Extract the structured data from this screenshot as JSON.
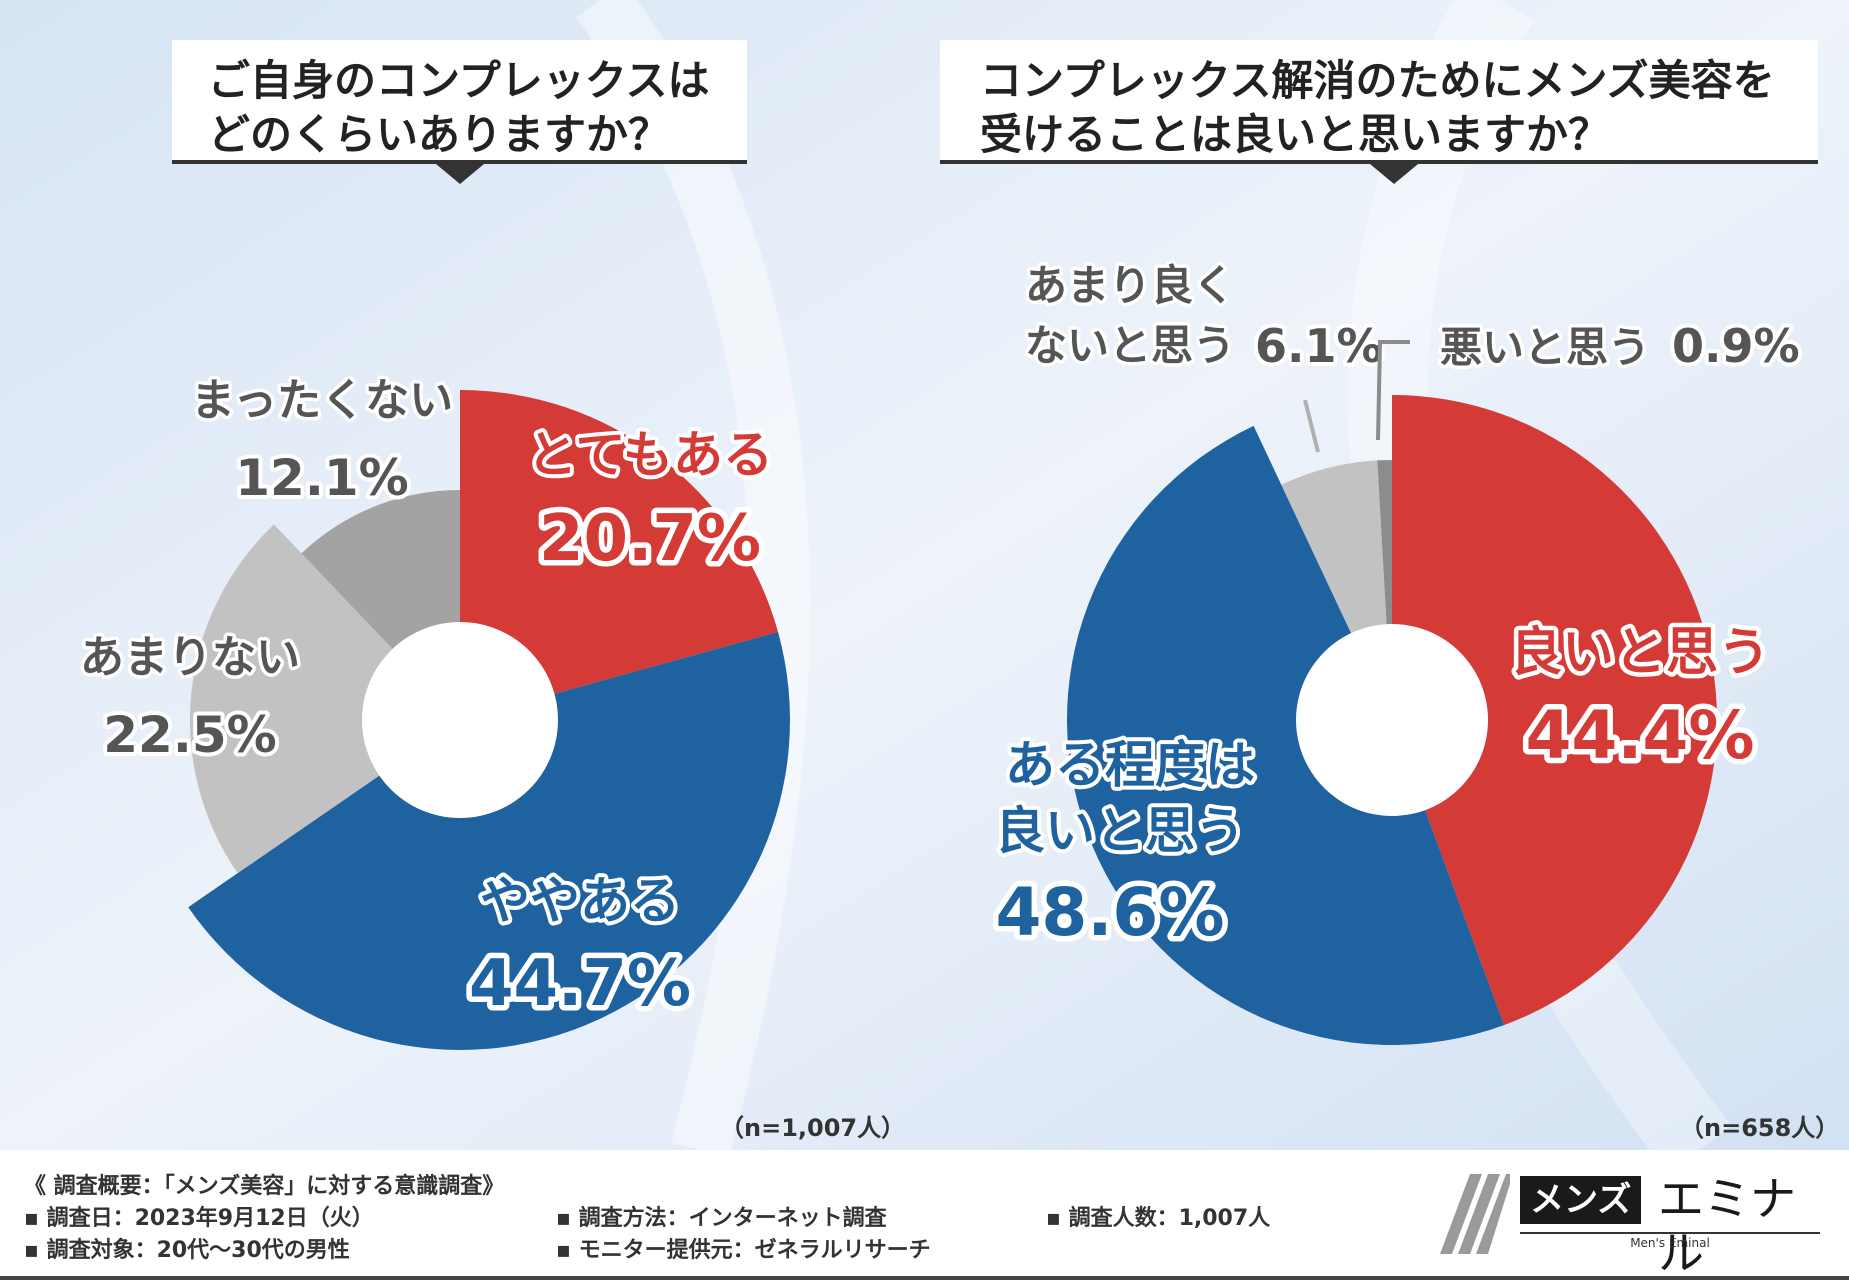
{
  "colors": {
    "red": "#d43a36",
    "blue": "#1f62a0",
    "light_gray": "#c2c2c2",
    "mid_gray": "#a3a3a3",
    "dark_gray": "#8c8c8c"
  },
  "chart_data": [
    {
      "type": "pie",
      "title": "ご自身のコンプレックスはどのくらいありますか？",
      "title_lines": [
        "ご自身のコンプレックスは",
        "どのくらいありますか？"
      ],
      "sample": "（n=1,007人）",
      "slices": [
        {
          "label": "とてもある",
          "value": 20.7,
          "value_text": "20.7%",
          "color": "#d43a36",
          "label_color": "#d43a36"
        },
        {
          "label": "ややある",
          "value": 44.7,
          "value_text": "44.7%",
          "color": "#1f62a0",
          "label_color": "#1f62a0"
        },
        {
          "label": "あまりない",
          "value": 22.5,
          "value_text": "22.5%",
          "color": "#c2c2c2",
          "label_color": "#555555"
        },
        {
          "label": "まったくない",
          "value": 12.1,
          "value_text": "12.1%",
          "color": "#a3a3a3",
          "label_color": "#555555"
        }
      ]
    },
    {
      "type": "pie",
      "title": "コンプレックス解消のためにメンズ美容を受けることは良いと思いますか？",
      "title_lines": [
        "コンプレックス解消のためにメンズ美容を",
        "受けることは良いと思いますか？"
      ],
      "sample": "（n=658人）",
      "slices": [
        {
          "label": "良いと思う",
          "value": 44.4,
          "value_text": "44.4%",
          "color": "#d43a36",
          "label_color": "#d43a36"
        },
        {
          "label": "ある程度は良いと思う",
          "label_lines": [
            "ある程度は",
            "良いと思う"
          ],
          "value": 48.6,
          "value_text": "48.6%",
          "color": "#1f62a0",
          "label_color": "#1f62a0"
        },
        {
          "label": "あまり良くないと思う",
          "label_lines": [
            "あまり良く",
            "ないと思う"
          ],
          "value": 6.1,
          "value_text": "6.1%",
          "color": "#c2c2c2",
          "label_color": "#555555"
        },
        {
          "label": "悪いと思う",
          "value": 0.9,
          "value_text": "0.9%",
          "color": "#8c8c8c",
          "label_color": "#555555"
        }
      ]
    }
  ],
  "footer": {
    "summary": "《 調査概要：「メンズ美容」に対する意識調査》",
    "date": "▪ 調査日：2023年9月12日（火）",
    "target": "▪ 調査対象：20代〜30代の男性",
    "method": "▪ 調査方法：インターネット調査",
    "provider": "▪ モニター提供元：ゼネラルリサーチ",
    "count": "▪ 調査人数：1,007人"
  },
  "logo": {
    "badge": "メンズ",
    "name": "エミナル",
    "sub": "Men's Eminal"
  }
}
